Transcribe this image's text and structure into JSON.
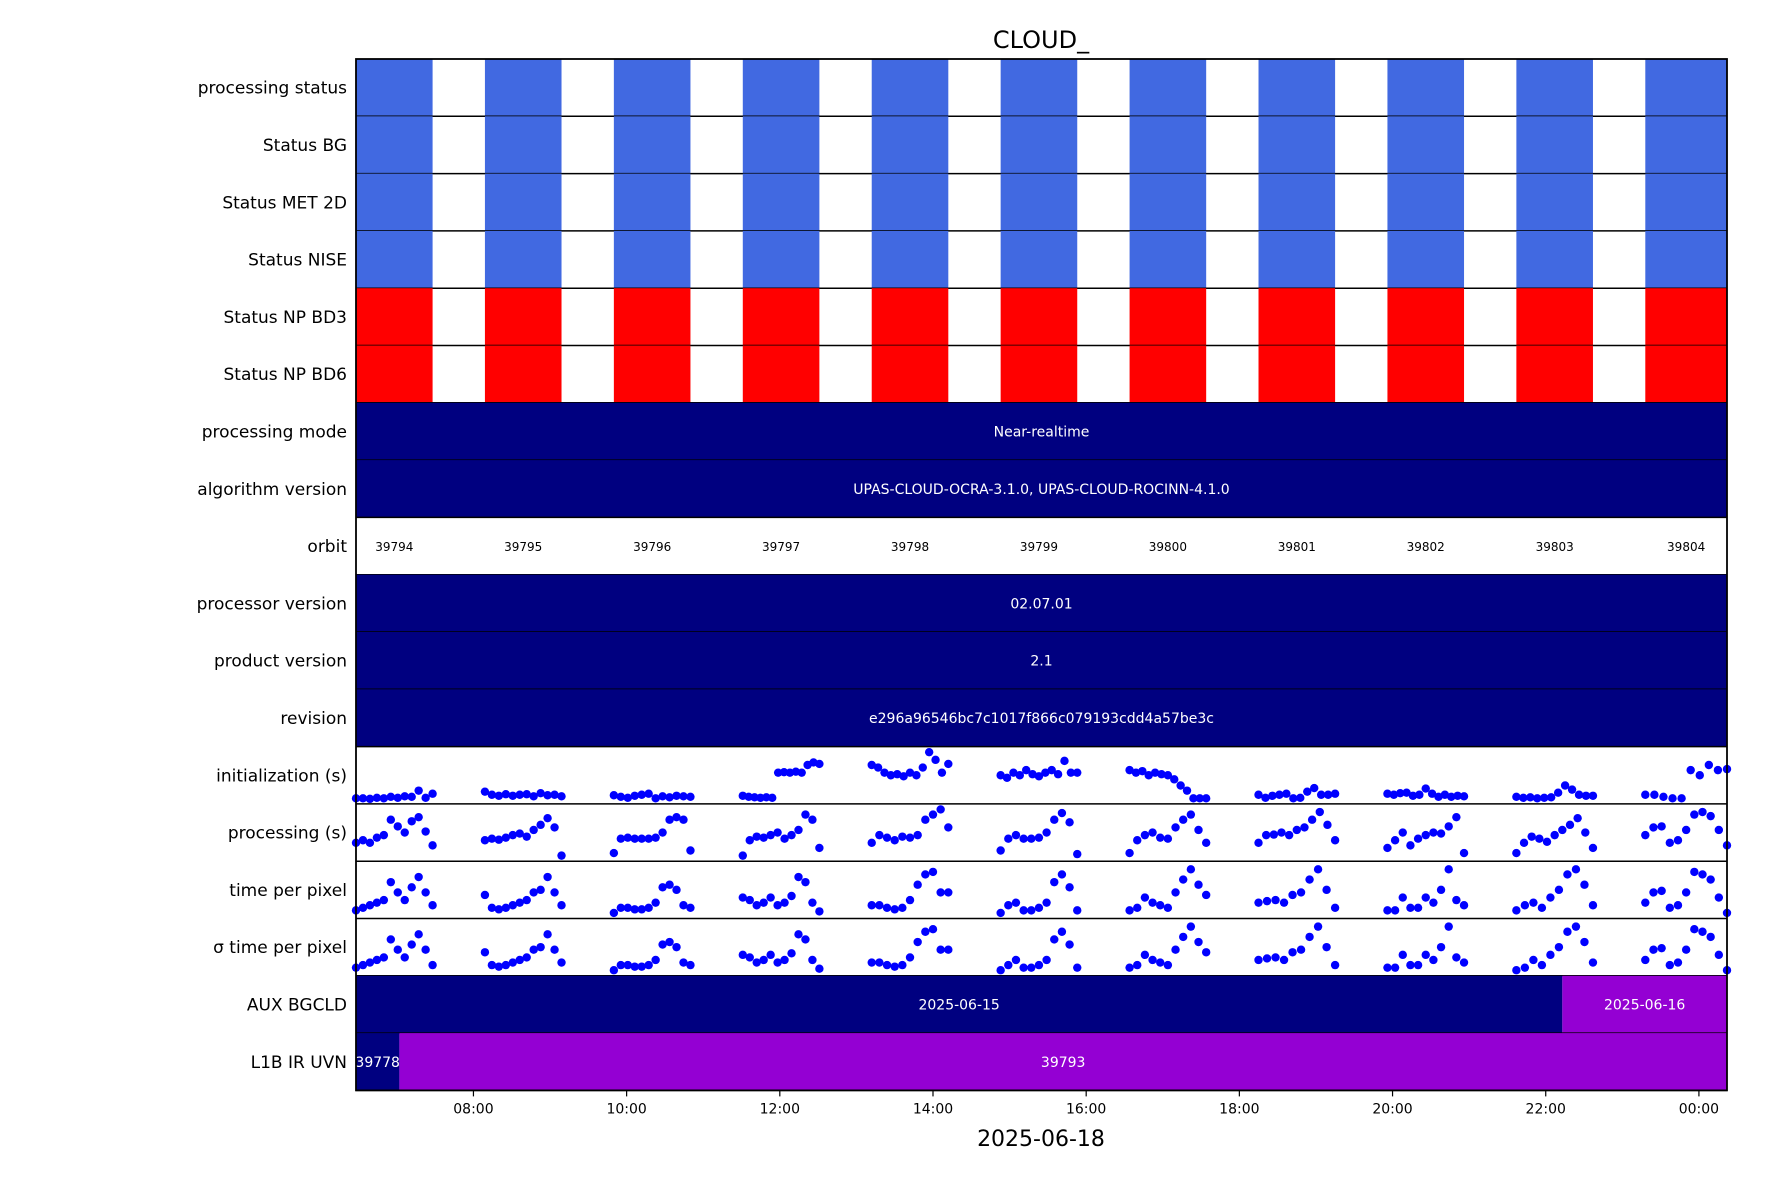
{
  "chart_data": {
    "type": "timeline",
    "title": "CLOUD_",
    "xlabel": "2025-06-18",
    "x_ticks": [
      "08:00",
      "10:00",
      "12:00",
      "14:00",
      "16:00",
      "18:00",
      "20:00",
      "22:00",
      "00:00"
    ],
    "x_range": [
      "06:28",
      "00:22"
    ],
    "colors": {
      "status_ok": "#4169e1",
      "status_bad": "#ff0000",
      "band_dark": "#000080",
      "band_purple": "#9400d3",
      "points": "#0000ff"
    },
    "orbit_segments": [
      {
        "orbit": "39794",
        "start": "06:28",
        "end": "07:28"
      },
      {
        "orbit": "39795",
        "start": "08:09",
        "end": "09:09"
      },
      {
        "orbit": "39796",
        "start": "09:50",
        "end": "10:50"
      },
      {
        "orbit": "39797",
        "start": "11:31",
        "end": "12:31"
      },
      {
        "orbit": "39798",
        "start": "13:12",
        "end": "14:12"
      },
      {
        "orbit": "39799",
        "start": "14:53",
        "end": "15:53"
      },
      {
        "orbit": "39800",
        "start": "16:34",
        "end": "17:34"
      },
      {
        "orbit": "39801",
        "start": "18:15",
        "end": "19:15"
      },
      {
        "orbit": "39802",
        "start": "19:56",
        "end": "20:56"
      },
      {
        "orbit": "39803",
        "start": "21:37",
        "end": "22:37"
      },
      {
        "orbit": "39804",
        "start": "23:18",
        "end": "00:22"
      }
    ],
    "rows": [
      {
        "label": "processing status",
        "kind": "status",
        "color": "status_ok"
      },
      {
        "label": "Status BG",
        "kind": "status",
        "color": "status_ok"
      },
      {
        "label": "Status MET 2D",
        "kind": "status",
        "color": "status_ok"
      },
      {
        "label": "Status NISE",
        "kind": "status",
        "color": "status_ok"
      },
      {
        "label": "Status NP BD3",
        "kind": "status",
        "color": "status_bad"
      },
      {
        "label": "Status NP BD6",
        "kind": "status",
        "color": "status_bad"
      },
      {
        "label": "processing mode",
        "kind": "band",
        "segments": [
          {
            "text": "Near-realtime",
            "start": "06:28",
            "end": "00:22",
            "color": "band_dark"
          }
        ]
      },
      {
        "label": "algorithm version",
        "kind": "band",
        "segments": [
          {
            "text": "UPAS-CLOUD-OCRA-3.1.0, UPAS-CLOUD-ROCINN-4.1.0",
            "start": "06:28",
            "end": "00:22",
            "color": "band_dark"
          }
        ]
      },
      {
        "label": "orbit",
        "kind": "orbit"
      },
      {
        "label": "processor version",
        "kind": "band",
        "segments": [
          {
            "text": "02.07.01",
            "start": "06:28",
            "end": "00:22",
            "color": "band_dark"
          }
        ]
      },
      {
        "label": "product version",
        "kind": "band",
        "segments": [
          {
            "text": "2.1",
            "start": "06:28",
            "end": "00:22",
            "color": "band_dark"
          }
        ]
      },
      {
        "label": "revision",
        "kind": "band",
        "segments": [
          {
            "text": "e296a96546bc7c1017f866c079193cdd4a57be3c",
            "start": "06:28",
            "end": "00:22",
            "color": "band_dark"
          }
        ]
      },
      {
        "label": "initialization (s)",
        "kind": "scatter",
        "values": [
          [
            0.05,
            0.05,
            0.04,
            0.06,
            0.05,
            0.08,
            0.06,
            0.09,
            0.08,
            0.2,
            0.06,
            0.14
          ],
          [
            0.18,
            0.12,
            0.1,
            0.13,
            0.1,
            0.12,
            0.13,
            0.09,
            0.15,
            0.11,
            0.12,
            0.09
          ],
          [
            0.11,
            0.08,
            0.06,
            0.1,
            0.12,
            0.14,
            0.05,
            0.09,
            0.07,
            0.1,
            0.09,
            0.08
          ],
          [
            0.1,
            0.08,
            0.07,
            0.06,
            0.07,
            0.06,
            0.55,
            0.56,
            0.55,
            0.57,
            0.55,
            0.7,
            0.75,
            0.72
          ],
          [
            0.7,
            0.65,
            0.55,
            0.5,
            0.52,
            0.48,
            0.55,
            0.5,
            0.65,
            0.95,
            0.8,
            0.55,
            0.72
          ],
          [
            0.5,
            0.45,
            0.55,
            0.5,
            0.6,
            0.52,
            0.48,
            0.55,
            0.6,
            0.52,
            0.78,
            0.55,
            0.55
          ],
          [
            0.6,
            0.55,
            0.58,
            0.5,
            0.55,
            0.52,
            0.5,
            0.42,
            0.3,
            0.2,
            0.05,
            0.05,
            0.05
          ],
          [
            0.12,
            0.06,
            0.1,
            0.12,
            0.14,
            0.05,
            0.06,
            0.18,
            0.25,
            0.12,
            0.12,
            0.14
          ],
          [
            0.14,
            0.12,
            0.15,
            0.16,
            0.1,
            0.12,
            0.24,
            0.14,
            0.08,
            0.12,
            0.08,
            0.1,
            0.09
          ],
          [
            0.08,
            0.06,
            0.07,
            0.05,
            0.06,
            0.07,
            0.16,
            0.3,
            0.22,
            0.12,
            0.1,
            0.1
          ],
          [
            0.12,
            0.12,
            0.08,
            0.05,
            0.05,
            0.6,
            0.5,
            0.7,
            0.6,
            0.62
          ]
        ]
      },
      {
        "label": "processing (s)",
        "kind": "scatter",
        "values": [
          [
            0.3,
            0.35,
            0.3,
            0.4,
            0.45,
            0.75,
            0.62,
            0.5,
            0.72,
            0.8,
            0.52,
            0.25
          ],
          [
            0.35,
            0.38,
            0.36,
            0.4,
            0.45,
            0.48,
            0.42,
            0.55,
            0.65,
            0.78,
            0.6,
            0.05
          ],
          [
            0.1,
            0.38,
            0.4,
            0.38,
            0.38,
            0.38,
            0.4,
            0.5,
            0.75,
            0.8,
            0.75,
            0.15
          ],
          [
            0.05,
            0.35,
            0.42,
            0.4,
            0.45,
            0.5,
            0.38,
            0.45,
            0.55,
            0.85,
            0.75,
            0.2
          ],
          [
            0.3,
            0.45,
            0.4,
            0.35,
            0.42,
            0.4,
            0.45,
            0.75,
            0.85,
            0.95,
            0.6
          ],
          [
            0.15,
            0.38,
            0.45,
            0.38,
            0.38,
            0.4,
            0.5,
            0.75,
            0.88,
            0.7,
            0.08
          ],
          [
            0.1,
            0.35,
            0.45,
            0.5,
            0.4,
            0.38,
            0.6,
            0.75,
            0.85,
            0.55,
            0.3
          ],
          [
            0.3,
            0.45,
            0.46,
            0.5,
            0.45,
            0.55,
            0.6,
            0.75,
            0.9,
            0.65,
            0.35
          ],
          [
            0.2,
            0.35,
            0.5,
            0.25,
            0.38,
            0.45,
            0.5,
            0.48,
            0.62,
            0.8,
            0.1
          ],
          [
            0.1,
            0.3,
            0.42,
            0.38,
            0.32,
            0.45,
            0.55,
            0.65,
            0.78,
            0.5,
            0.2
          ],
          [
            0.45,
            0.6,
            0.62,
            0.3,
            0.35,
            0.55,
            0.85,
            0.9,
            0.82,
            0.55,
            0.25
          ]
        ]
      },
      {
        "label": "time per pixel",
        "kind": "scatter",
        "values": [
          [
            0.1,
            0.15,
            0.2,
            0.25,
            0.3,
            0.65,
            0.45,
            0.3,
            0.55,
            0.75,
            0.45,
            0.2
          ],
          [
            0.4,
            0.15,
            0.12,
            0.15,
            0.2,
            0.25,
            0.3,
            0.45,
            0.5,
            0.75,
            0.45,
            0.2
          ],
          [
            0.05,
            0.15,
            0.15,
            0.12,
            0.12,
            0.15,
            0.25,
            0.55,
            0.6,
            0.5,
            0.2,
            0.15
          ],
          [
            0.35,
            0.3,
            0.2,
            0.25,
            0.35,
            0.2,
            0.25,
            0.38,
            0.75,
            0.65,
            0.25,
            0.08
          ],
          [
            0.2,
            0.2,
            0.15,
            0.12,
            0.15,
            0.3,
            0.6,
            0.8,
            0.85,
            0.45,
            0.45
          ],
          [
            0.05,
            0.2,
            0.25,
            0.1,
            0.1,
            0.15,
            0.25,
            0.65,
            0.8,
            0.55,
            0.1
          ],
          [
            0.1,
            0.15,
            0.35,
            0.25,
            0.2,
            0.15,
            0.45,
            0.7,
            0.9,
            0.6,
            0.4
          ],
          [
            0.25,
            0.28,
            0.3,
            0.25,
            0.4,
            0.45,
            0.7,
            0.9,
            0.5,
            0.15
          ],
          [
            0.1,
            0.1,
            0.35,
            0.15,
            0.15,
            0.35,
            0.25,
            0.5,
            0.9,
            0.3,
            0.2
          ],
          [
            0.1,
            0.2,
            0.25,
            0.15,
            0.35,
            0.5,
            0.8,
            0.9,
            0.6,
            0.2
          ],
          [
            0.25,
            0.45,
            0.48,
            0.15,
            0.2,
            0.45,
            0.85,
            0.8,
            0.7,
            0.35,
            0.05
          ]
        ]
      },
      {
        "label": "σ time per pixel",
        "kind": "scatter",
        "values": [
          [
            0.1,
            0.15,
            0.2,
            0.25,
            0.3,
            0.65,
            0.45,
            0.3,
            0.55,
            0.75,
            0.45,
            0.15
          ],
          [
            0.4,
            0.15,
            0.12,
            0.15,
            0.2,
            0.25,
            0.3,
            0.45,
            0.5,
            0.75,
            0.45,
            0.2
          ],
          [
            0.05,
            0.15,
            0.15,
            0.12,
            0.12,
            0.15,
            0.25,
            0.55,
            0.6,
            0.5,
            0.2,
            0.15
          ],
          [
            0.35,
            0.3,
            0.2,
            0.25,
            0.35,
            0.2,
            0.25,
            0.38,
            0.75,
            0.65,
            0.25,
            0.08
          ],
          [
            0.2,
            0.2,
            0.15,
            0.12,
            0.15,
            0.3,
            0.6,
            0.8,
            0.85,
            0.45,
            0.45
          ],
          [
            0.05,
            0.15,
            0.25,
            0.1,
            0.1,
            0.15,
            0.25,
            0.65,
            0.8,
            0.55,
            0.1
          ],
          [
            0.1,
            0.15,
            0.35,
            0.25,
            0.2,
            0.15,
            0.45,
            0.7,
            0.9,
            0.6,
            0.4
          ],
          [
            0.25,
            0.28,
            0.3,
            0.25,
            0.4,
            0.45,
            0.7,
            0.9,
            0.5,
            0.15
          ],
          [
            0.1,
            0.1,
            0.35,
            0.15,
            0.15,
            0.35,
            0.25,
            0.5,
            0.9,
            0.3,
            0.2
          ],
          [
            0.05,
            0.1,
            0.25,
            0.15,
            0.35,
            0.5,
            0.8,
            0.9,
            0.6,
            0.2
          ],
          [
            0.25,
            0.45,
            0.48,
            0.15,
            0.2,
            0.45,
            0.85,
            0.8,
            0.7,
            0.35,
            0.05
          ]
        ]
      },
      {
        "label": "AUX BGCLD",
        "kind": "band",
        "segments": [
          {
            "text": "2025-06-15",
            "start": "06:28",
            "end": "22:13",
            "color": "band_dark"
          },
          {
            "text": "2025-06-16",
            "start": "22:13",
            "end": "00:22",
            "color": "band_purple"
          }
        ]
      },
      {
        "label": "L1B IR UVN",
        "kind": "band",
        "segments": [
          {
            "text": "39778",
            "start": "06:28",
            "end": "07:02",
            "color": "band_dark"
          },
          {
            "text": "39793",
            "start": "07:02",
            "end": "00:22",
            "color": "band_purple"
          }
        ]
      }
    ]
  }
}
